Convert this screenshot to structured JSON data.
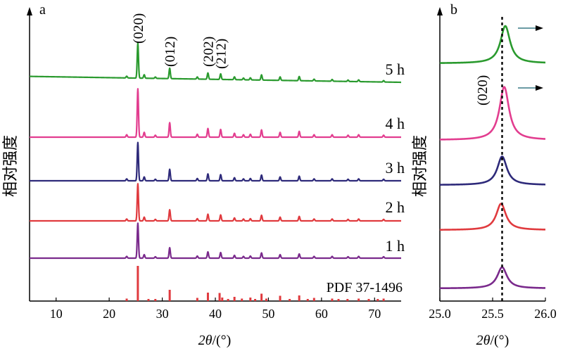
{
  "chart_data": [
    {
      "panel": "a",
      "type": "line",
      "ylabel": "相对强度",
      "xlabel_var": "2θ",
      "xlabel_unit": "/(°)",
      "xlim": [
        5,
        75
      ],
      "xticks": [
        10,
        20,
        30,
        40,
        50,
        60,
        70
      ],
      "peak_labels": [
        {
          "text": "(020)",
          "x": 25.4
        },
        {
          "text": "(012)",
          "x": 31.4
        },
        {
          "text": "(202)",
          "x": 38.6
        },
        {
          "text": "(212)",
          "x": 41.0
        }
      ],
      "reference": {
        "name": "PDF 37-1496",
        "color": "#e03a3e",
        "sticks": [
          [
            23.3,
            0.07
          ],
          [
            25.4,
            1.0
          ],
          [
            27.4,
            0.06
          ],
          [
            28.7,
            0.06
          ],
          [
            31.4,
            0.32
          ],
          [
            36.6,
            0.09
          ],
          [
            38.6,
            0.24
          ],
          [
            40.8,
            0.23
          ],
          [
            41.3,
            0.1
          ],
          [
            42.4,
            0.06
          ],
          [
            43.6,
            0.12
          ],
          [
            45.0,
            0.07
          ],
          [
            46.6,
            0.1
          ],
          [
            47.5,
            0.06
          ],
          [
            48.7,
            0.21
          ],
          [
            49.6,
            0.07
          ],
          [
            52.2,
            0.15
          ],
          [
            54.0,
            0.06
          ],
          [
            55.8,
            0.16
          ],
          [
            57.4,
            0.06
          ],
          [
            58.6,
            0.09
          ],
          [
            62.0,
            0.07
          ],
          [
            63.2,
            0.06
          ],
          [
            64.9,
            0.06
          ],
          [
            67.0,
            0.07
          ],
          [
            68.9,
            0.06
          ],
          [
            70.6,
            0.06
          ],
          [
            71.7,
            0.07
          ]
        ]
      },
      "peaks": [
        [
          23.3,
          0.05
        ],
        [
          25.4,
          1.0
        ],
        [
          26.6,
          0.1
        ],
        [
          28.7,
          0.04
        ],
        [
          31.4,
          0.3
        ],
        [
          36.6,
          0.06
        ],
        [
          38.6,
          0.18
        ],
        [
          41.0,
          0.16
        ],
        [
          43.6,
          0.08
        ],
        [
          45.3,
          0.05
        ],
        [
          46.6,
          0.06
        ],
        [
          48.7,
          0.15
        ],
        [
          52.2,
          0.1
        ],
        [
          55.8,
          0.12
        ],
        [
          58.6,
          0.05
        ],
        [
          62.0,
          0.05
        ],
        [
          65.0,
          0.04
        ],
        [
          67.0,
          0.05
        ],
        [
          71.7,
          0.04
        ]
      ],
      "series": [
        {
          "name": "1 h",
          "color": "#7a2a8c",
          "scale": 0.62
        },
        {
          "name": "2 h",
          "color": "#e03a3e",
          "scale": 0.66
        },
        {
          "name": "3 h",
          "color": "#2e2a7a",
          "scale": 0.68
        },
        {
          "name": "4 h",
          "color": "#e23d8f",
          "scale": 0.86
        },
        {
          "name": "5 h",
          "color": "#2a9a2e",
          "scale": 0.62
        }
      ]
    },
    {
      "panel": "b",
      "type": "line",
      "ylabel": "相对强度",
      "xlabel_var": "2θ",
      "xlabel_unit": "/(°)",
      "xlim": [
        25.0,
        26.0
      ],
      "xticks": [
        "25.0",
        "25.5",
        "26.0"
      ],
      "reference_line_x": 25.59,
      "peak_label": "(020)",
      "shift_arrow_color": "#3a7a86",
      "series": [
        {
          "name": "1 h",
          "color": "#7a2a8c",
          "center": 25.59,
          "height": 0.58,
          "width": 0.055
        },
        {
          "name": "2 h",
          "color": "#e03a3e",
          "center": 25.58,
          "height": 0.72,
          "width": 0.055
        },
        {
          "name": "3 h",
          "color": "#2e2a7a",
          "center": 25.59,
          "height": 0.78,
          "width": 0.055
        },
        {
          "name": "4 h",
          "color": "#e23d8f",
          "center": 25.61,
          "height": 1.45,
          "width": 0.055,
          "arrow": true
        },
        {
          "name": "5 h",
          "color": "#2a9a2e",
          "center": 25.62,
          "height": 1.02,
          "width": 0.055,
          "arrow": true
        }
      ]
    }
  ]
}
